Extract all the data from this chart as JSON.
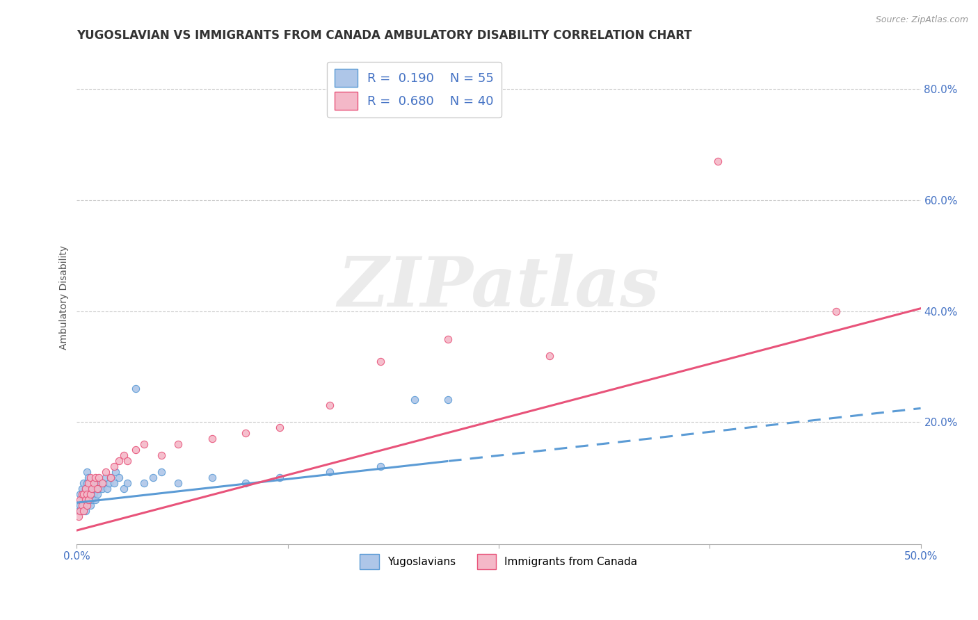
{
  "title": "YUGOSLAVIAN VS IMMIGRANTS FROM CANADA AMBULATORY DISABILITY CORRELATION CHART",
  "source": "Source: ZipAtlas.com",
  "ylabel": "Ambulatory Disability",
  "legend_bottom": [
    "Yugoslavians",
    "Immigrants from Canada"
  ],
  "R_blue": 0.19,
  "N_blue": 55,
  "R_pink": 0.68,
  "N_pink": 40,
  "xlim": [
    0.0,
    0.5
  ],
  "ylim": [
    -0.02,
    0.87
  ],
  "ytick_positions": [
    0.2,
    0.4,
    0.6,
    0.8
  ],
  "background_color": "#ffffff",
  "blue_line_color": "#5b9bd5",
  "blue_scatter_fill": "#aec6e8",
  "blue_scatter_edge": "#5b9bd5",
  "pink_line_color": "#e8537a",
  "pink_scatter_fill": "#f4b8c8",
  "pink_scatter_edge": "#e8537a",
  "grid_color": "#cccccc",
  "title_color": "#333333",
  "axis_label_color": "#555555",
  "tick_label_color": "#4472c4",
  "watermark_text": "ZIPatlas",
  "blue_regression": {
    "intercept": 0.055,
    "slope": 0.34,
    "cutoff": 0.22
  },
  "pink_regression": {
    "intercept": 0.005,
    "slope": 0.8
  },
  "blue_scatter_x": [
    0.001,
    0.002,
    0.002,
    0.003,
    0.003,
    0.003,
    0.004,
    0.004,
    0.004,
    0.005,
    0.005,
    0.005,
    0.006,
    0.006,
    0.006,
    0.006,
    0.007,
    0.007,
    0.007,
    0.008,
    0.008,
    0.008,
    0.009,
    0.009,
    0.01,
    0.01,
    0.011,
    0.011,
    0.012,
    0.012,
    0.013,
    0.014,
    0.015,
    0.016,
    0.017,
    0.018,
    0.019,
    0.02,
    0.022,
    0.023,
    0.025,
    0.028,
    0.03,
    0.035,
    0.04,
    0.045,
    0.05,
    0.06,
    0.08,
    0.1,
    0.12,
    0.15,
    0.18,
    0.2,
    0.22
  ],
  "blue_scatter_y": [
    0.04,
    0.05,
    0.07,
    0.04,
    0.06,
    0.08,
    0.05,
    0.07,
    0.09,
    0.04,
    0.06,
    0.08,
    0.05,
    0.07,
    0.09,
    0.11,
    0.06,
    0.08,
    0.1,
    0.05,
    0.07,
    0.09,
    0.06,
    0.08,
    0.07,
    0.09,
    0.06,
    0.08,
    0.07,
    0.09,
    0.08,
    0.09,
    0.08,
    0.09,
    0.1,
    0.08,
    0.09,
    0.1,
    0.09,
    0.11,
    0.1,
    0.08,
    0.09,
    0.26,
    0.09,
    0.1,
    0.11,
    0.09,
    0.1,
    0.09,
    0.1,
    0.11,
    0.12,
    0.24,
    0.24
  ],
  "pink_scatter_x": [
    0.001,
    0.002,
    0.002,
    0.003,
    0.003,
    0.004,
    0.004,
    0.005,
    0.005,
    0.006,
    0.006,
    0.007,
    0.007,
    0.008,
    0.008,
    0.009,
    0.01,
    0.011,
    0.012,
    0.013,
    0.015,
    0.017,
    0.02,
    0.022,
    0.025,
    0.028,
    0.03,
    0.035,
    0.04,
    0.05,
    0.06,
    0.08,
    0.1,
    0.12,
    0.15,
    0.18,
    0.22,
    0.28,
    0.38,
    0.45
  ],
  "pink_scatter_y": [
    0.03,
    0.04,
    0.06,
    0.05,
    0.07,
    0.04,
    0.07,
    0.06,
    0.08,
    0.05,
    0.07,
    0.06,
    0.09,
    0.07,
    0.1,
    0.08,
    0.09,
    0.1,
    0.08,
    0.1,
    0.09,
    0.11,
    0.1,
    0.12,
    0.13,
    0.14,
    0.13,
    0.15,
    0.16,
    0.14,
    0.16,
    0.17,
    0.18,
    0.19,
    0.23,
    0.31,
    0.35,
    0.32,
    0.67,
    0.4
  ]
}
